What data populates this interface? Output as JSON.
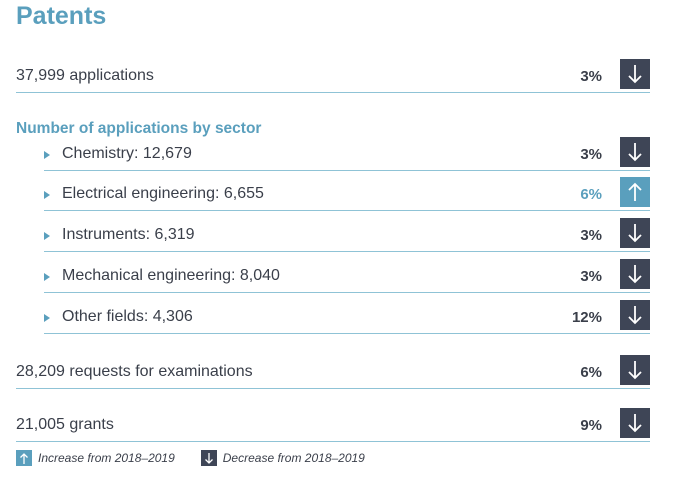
{
  "title": "Patents",
  "applications": {
    "label": "37,999  applications",
    "pct": "3%",
    "trend": "down"
  },
  "sector_heading": "Number of applications by sector",
  "sectors": [
    {
      "label": "Chemistry: 12,679",
      "pct": "3%",
      "trend": "down"
    },
    {
      "label": "Electrical engineering: 6,655",
      "pct": "6%",
      "trend": "up"
    },
    {
      "label": "Instruments: 6,319",
      "pct": "3%",
      "trend": "down"
    },
    {
      "label": "Mechanical engineering: 8,040",
      "pct": "3%",
      "trend": "down"
    },
    {
      "label": "Other fields: 4,306",
      "pct": "12%",
      "trend": "down"
    }
  ],
  "examinations": {
    "label": "28,209 requests for examinations",
    "pct": "6%",
    "trend": "down"
  },
  "grants": {
    "label": "21,005  grants",
    "pct": "9%",
    "trend": "down"
  },
  "legend": {
    "increase": "Increase from 2018–2019",
    "decrease": "Decrease from 2018–2019"
  },
  "colors": {
    "accent": "#5a9fbd",
    "dark": "#3e4556",
    "text": "#3a3f4a"
  },
  "icons": {
    "up": "arrow-up-icon",
    "down": "arrow-down-icon"
  }
}
